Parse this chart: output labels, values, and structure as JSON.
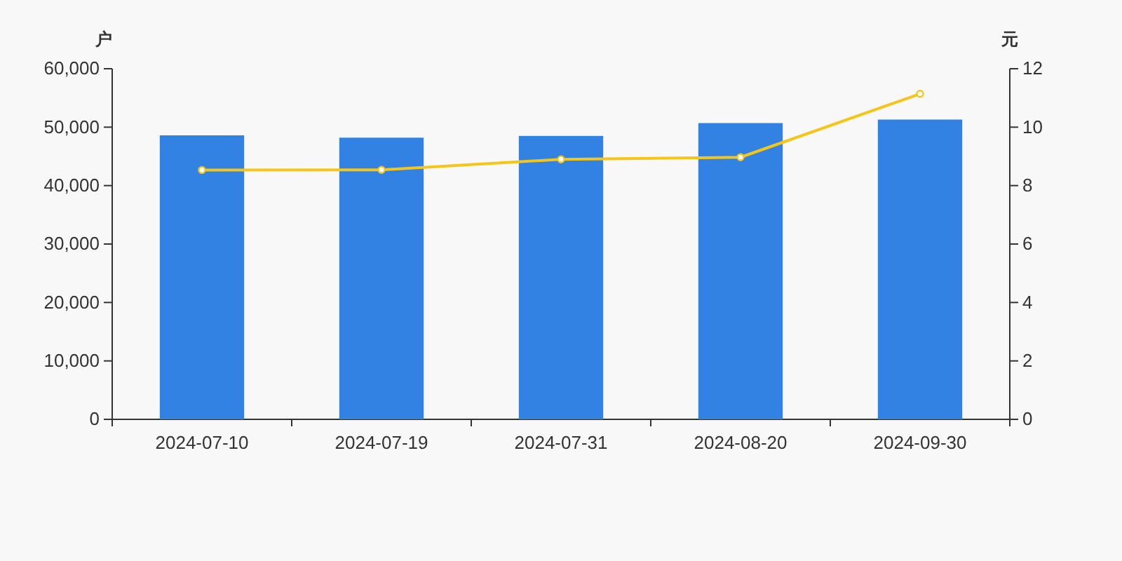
{
  "chart_data": {
    "type": "bar",
    "ylabel": "户",
    "y2label": "元",
    "categories": [
      "2024-07-10",
      "2024-07-19",
      "2024-07-31",
      "2024-08-20",
      "2024-09-30"
    ],
    "series": [
      {
        "color": "#3282e3",
        "values": [
          48600,
          48200,
          48500,
          50700,
          51300
        ]
      },
      {
        "type": "line",
        "axis": "y2",
        "color": "#f5c518",
        "marker": "circle",
        "values": [
          8.53,
          8.54,
          8.9,
          8.97,
          11.14
        ]
      }
    ],
    "ylim": [
      0,
      60000
    ],
    "yticks": [
      0,
      {
        "value": 10000,
        "label": "10,000"
      },
      {
        "value": 20000,
        "label": "20,000"
      },
      {
        "value": 30000,
        "label": "30,000"
      },
      {
        "value": 40000,
        "label": "40,000"
      },
      {
        "value": 50000,
        "label": "50,000"
      },
      {
        "value": 60000,
        "label": "60,000"
      }
    ],
    "y2lim": [
      0,
      12
    ],
    "y2ticks": [
      0,
      2,
      4,
      6,
      8,
      10,
      12
    ],
    "grid": false
  }
}
